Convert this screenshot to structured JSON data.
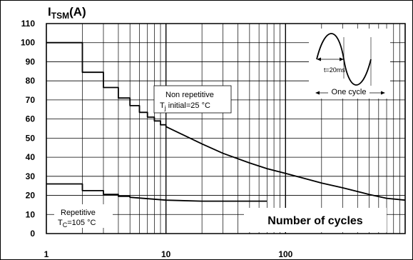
{
  "chart_data": {
    "type": "line",
    "x_scale": "log",
    "xlim": [
      1,
      1000
    ],
    "ylim": [
      0,
      110
    ],
    "y_ticks": [
      0,
      10,
      20,
      30,
      40,
      50,
      60,
      70,
      80,
      90,
      100,
      110
    ],
    "x_tick_labels": [
      {
        "x": 1,
        "label": "1"
      },
      {
        "x": 10,
        "label": "10"
      },
      {
        "x": 100,
        "label": "100"
      }
    ],
    "ylabel": {
      "main": "I",
      "sub": "TSM",
      "unit": "(A)"
    },
    "x_axis_caption": "Number of cycles",
    "grid": true,
    "series": [
      {
        "label_lines": [
          "Non repetitive",
          "T",
          "j",
          " initial=25 °C"
        ],
        "points": [
          [
            1,
            100
          ],
          [
            2,
            100
          ],
          [
            2,
            84.5
          ],
          [
            3,
            84.5
          ],
          [
            3,
            76.5
          ],
          [
            4,
            76.5
          ],
          [
            4,
            71
          ],
          [
            5,
            71
          ],
          [
            5,
            67
          ],
          [
            6,
            67
          ],
          [
            6,
            63.5
          ],
          [
            7,
            63.5
          ],
          [
            7,
            61
          ],
          [
            8,
            61
          ],
          [
            8,
            59
          ],
          [
            9,
            59
          ],
          [
            9,
            57
          ],
          [
            10,
            57
          ],
          [
            10,
            56
          ],
          [
            20,
            47
          ],
          [
            30,
            42
          ],
          [
            50,
            37
          ],
          [
            70,
            34
          ],
          [
            100,
            31.5
          ],
          [
            200,
            26.5
          ],
          [
            300,
            24
          ],
          [
            500,
            20.5
          ],
          [
            700,
            18.5
          ],
          [
            1000,
            17.5
          ]
        ]
      },
      {
        "label_lines": [
          "Repetitive",
          "T",
          "C",
          "=105 °C"
        ],
        "points": [
          [
            1,
            26
          ],
          [
            2,
            26
          ],
          [
            2,
            22.5
          ],
          [
            3,
            22.5
          ],
          [
            3,
            20.5
          ],
          [
            4,
            20.5
          ],
          [
            4,
            19.5
          ],
          [
            5,
            19.5
          ],
          [
            5,
            19
          ],
          [
            10,
            17.5
          ],
          [
            20,
            17
          ],
          [
            70,
            17
          ]
        ]
      }
    ],
    "inset": {
      "time_label": "t=20ms",
      "caption": "One cycle"
    },
    "colors": {
      "line": "#000000",
      "grid": "#000000",
      "background": "#ffffff"
    }
  }
}
